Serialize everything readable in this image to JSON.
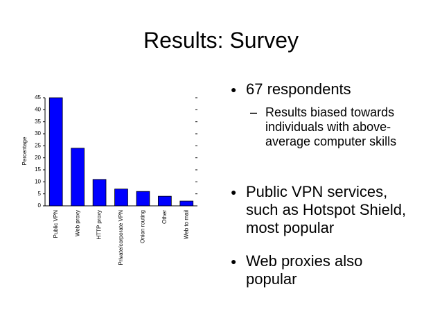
{
  "title": "Results: Survey",
  "bullets": [
    {
      "text": "67 respondents",
      "sub": [
        "Results biased towards individuals with above-average computer skills"
      ]
    },
    {
      "text": "Public VPN services, such as Hotspot Shield, most popular"
    },
    {
      "text": "Web proxies also popular"
    }
  ],
  "chart_data": {
    "type": "bar",
    "y_label": "Percentage",
    "categories": [
      "Public VPN",
      "Web proxy",
      "HTTP proxy",
      "Private/corporate VPN",
      "Onion routing",
      "Other",
      "Web to mail"
    ],
    "values": [
      45,
      24,
      11,
      7,
      6,
      4,
      2
    ],
    "color": "#0000ff",
    "ylim": [
      0,
      45
    ],
    "yticks": [
      0,
      5,
      10,
      15,
      20,
      25,
      30,
      35,
      40,
      45
    ]
  }
}
